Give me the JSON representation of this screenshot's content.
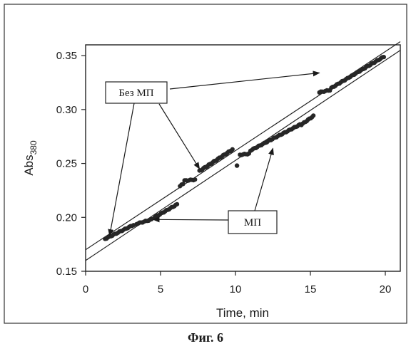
{
  "figure_caption": "Фиг. 6",
  "chart_data": {
    "type": "scatter",
    "xlabel": "Time, min",
    "ylabel_main": "Abs",
    "ylabel_sub": "380",
    "xlim": [
      0,
      21
    ],
    "ylim": [
      0.15,
      0.36
    ],
    "xticks": [
      0,
      5,
      10,
      15,
      20
    ],
    "xtick_labels": [
      "0",
      "5",
      "10",
      "15",
      "20"
    ],
    "yticks": [
      0.15,
      0.2,
      0.25,
      0.3,
      0.35
    ],
    "ytick_labels": [
      "0.15",
      "0.20",
      "0.25",
      "0.30",
      "0.35"
    ],
    "grid": false,
    "series": [
      {
        "segments": [
          {
            "x_start": 1.3,
            "x_end": 3.2,
            "y_start": 0.18,
            "y_end": 0.193
          },
          {
            "x_start": 3.4,
            "x_end": 4.4,
            "y_start": 0.194,
            "y_end": 0.198
          },
          {
            "x_start": 4.6,
            "x_end": 6.1,
            "y_start": 0.2,
            "y_end": 0.212
          },
          {
            "x_start": 6.3,
            "x_end": 6.5,
            "y_start": 0.229,
            "y_end": 0.231
          },
          {
            "x_start": 6.6,
            "x_end": 7.3,
            "y_start": 0.234,
            "y_end": 0.235
          },
          {
            "x_start": 7.6,
            "x_end": 9.8,
            "y_start": 0.243,
            "y_end": 0.263
          },
          {
            "x_start": 10.3,
            "x_end": 10.9,
            "y_start": 0.258,
            "y_end": 0.259
          },
          {
            "x_start": 11.0,
            "x_end": 14.3,
            "y_start": 0.262,
            "y_end": 0.286
          },
          {
            "x_start": 14.4,
            "x_end": 15.2,
            "y_start": 0.286,
            "y_end": 0.294
          },
          {
            "x_start": 15.6,
            "x_end": 16.3,
            "y_start": 0.316,
            "y_end": 0.318
          },
          {
            "x_start": 16.4,
            "x_end": 19.9,
            "y_start": 0.32,
            "y_end": 0.349
          }
        ],
        "outliers": [
          [
            10.1,
            0.248
          ]
        ]
      }
    ],
    "trend_lines": [
      {
        "x": [
          0,
          21
        ],
        "y": [
          0.17,
          0.363
        ]
      },
      {
        "x": [
          0,
          21
        ],
        "y": [
          0.16,
          0.355
        ]
      }
    ],
    "annotations": [
      {
        "text": "Без МП",
        "arrow_targets": [
          [
            1.6,
            0.183
          ],
          [
            7.6,
            0.245
          ],
          [
            15.6,
            0.334
          ]
        ]
      },
      {
        "text": "МП",
        "arrow_targets": [
          [
            4.5,
            0.198
          ],
          [
            12.5,
            0.264
          ]
        ]
      }
    ]
  }
}
